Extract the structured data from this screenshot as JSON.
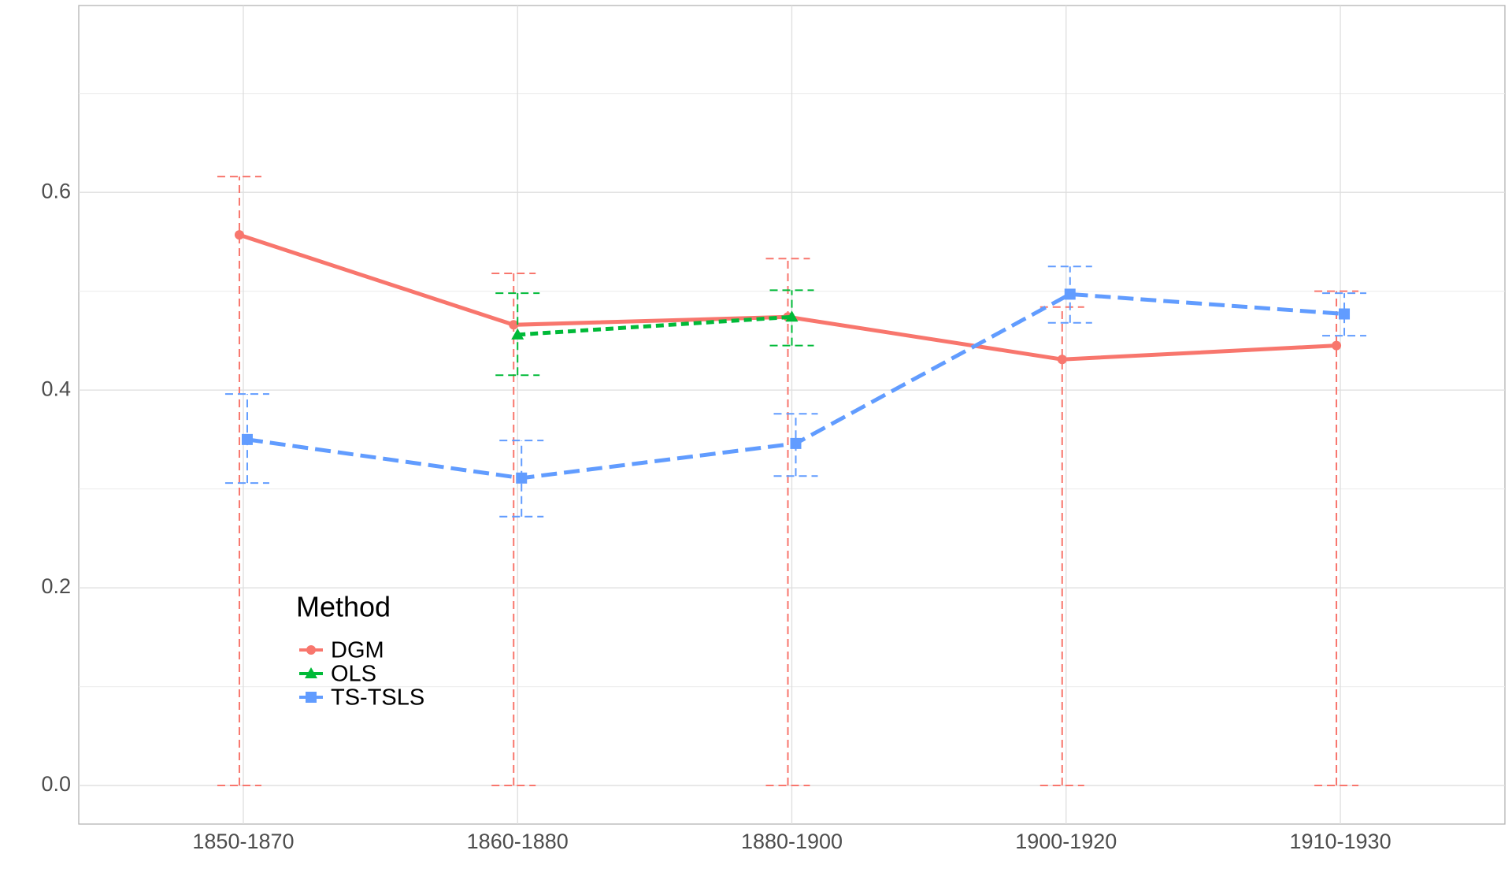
{
  "chart_data": {
    "type": "line",
    "categories": [
      "1850-1870",
      "1860-1880",
      "1880-1900",
      "1900-1920",
      "1910-1930"
    ],
    "series": [
      {
        "name": "DGM",
        "color": "#F8766D",
        "linetype": "solid",
        "shape": "circle",
        "values": [
          0.557,
          0.466,
          0.474,
          0.431,
          0.445
        ],
        "lower": [
          0,
          0,
          0,
          0,
          0
        ],
        "upper": [
          0.616,
          0.518,
          0.533,
          0.484,
          0.5
        ]
      },
      {
        "name": "OLS",
        "color": "#00BA38",
        "linetype": "dotted",
        "shape": "triangle",
        "values": [
          null,
          0.456,
          0.474,
          null,
          null
        ],
        "lower": [
          null,
          0.415,
          0.445,
          null,
          null
        ],
        "upper": [
          null,
          0.498,
          0.501,
          null,
          null
        ]
      },
      {
        "name": "TS-TSLS",
        "color": "#619CFF",
        "linetype": "dashed",
        "shape": "square",
        "values": [
          0.35,
          0.311,
          0.346,
          0.497,
          0.477
        ],
        "lower": [
          0.306,
          0.272,
          0.313,
          0.468,
          0.455
        ],
        "upper": [
          0.396,
          0.349,
          0.376,
          0.525,
          0.498
        ]
      }
    ],
    "ylim": [
      -0.039,
      0.789
    ],
    "yticks": [
      {
        "value": 0,
        "label": "0.0"
      },
      {
        "value": 0.2,
        "label": "0.2"
      },
      {
        "value": 0.4,
        "label": "0.4"
      },
      {
        "value": 0.6,
        "label": "0.6"
      }
    ],
    "y_minor_ticks": [
      0.1,
      0.3,
      0.5,
      0.7
    ],
    "grid": true,
    "legend_title": "Method",
    "legend_position": "bottom-left"
  }
}
